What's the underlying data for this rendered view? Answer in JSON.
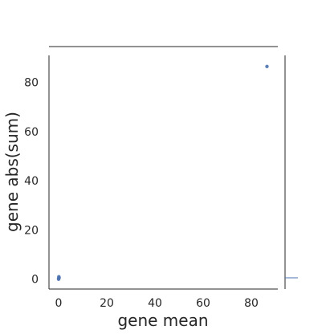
{
  "chart_data": {
    "type": "scatter",
    "title": "",
    "xlabel": "gene mean",
    "ylabel": "gene abs(sum)",
    "xlim": [
      -4,
      91
    ],
    "ylim": [
      -4,
      91
    ],
    "xticks": [
      0,
      20,
      40,
      60,
      80
    ],
    "yticks": [
      0,
      20,
      40,
      60,
      80
    ],
    "grid": false,
    "marginal_plots": true,
    "point_color": "#4c72b0",
    "points": [
      {
        "x": 0.0,
        "y": 0.3
      },
      {
        "x": 0.1,
        "y": 1.0
      },
      {
        "x": 0.2,
        "y": 0.6
      },
      {
        "x": 0.0,
        "y": 0.0
      },
      {
        "x": 86.5,
        "y": 86.5
      }
    ]
  }
}
